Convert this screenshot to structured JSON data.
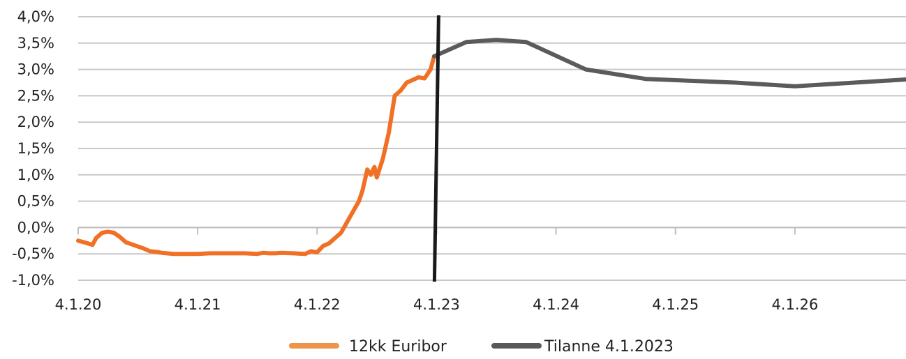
{
  "chart_data": {
    "type": "line",
    "title": "",
    "xlabel": "",
    "ylabel": "",
    "x_ticks": [
      "4.1.20",
      "4.1.21",
      "4.1.22",
      "4.1.23",
      "4.1.24",
      "4.1.25",
      "4.1.26"
    ],
    "y_ticks": [
      "4,0%",
      "3,5%",
      "3,0%",
      "2,5%",
      "2,0%",
      "1,5%",
      "1,0%",
      "0,5%",
      "0,0%",
      "-0,5%",
      "-1,0%"
    ],
    "xlim_years": [
      2020.0,
      2026.93
    ],
    "ylim": [
      -1.0,
      4.0
    ],
    "grid": "horizontal",
    "legend_position": "bottom",
    "vertical_marker": {
      "x": 2023.0,
      "color": "#1a1a1a"
    },
    "series": [
      {
        "name": "12kk Euribor",
        "color": "#f07126",
        "legend_color": "#ee9448",
        "x": [
          2020.0,
          2020.05,
          2020.08,
          2020.12,
          2020.15,
          2020.2,
          2020.25,
          2020.3,
          2020.35,
          2020.4,
          2020.45,
          2020.5,
          2020.55,
          2020.6,
          2020.65,
          2020.7,
          2020.8,
          2020.9,
          2021.0,
          2021.1,
          2021.2,
          2021.3,
          2021.4,
          2021.5,
          2021.55,
          2021.6,
          2021.65,
          2021.7,
          2021.8,
          2021.9,
          2021.95,
          2022.0,
          2022.05,
          2022.1,
          2022.15,
          2022.2,
          2022.25,
          2022.3,
          2022.35,
          2022.38,
          2022.42,
          2022.45,
          2022.48,
          2022.5,
          2022.55,
          2022.6,
          2022.65,
          2022.7,
          2022.75,
          2022.8,
          2022.85,
          2022.9,
          2022.95,
          2022.98
        ],
        "values": [
          -0.25,
          -0.28,
          -0.3,
          -0.33,
          -0.2,
          -0.1,
          -0.08,
          -0.1,
          -0.18,
          -0.28,
          -0.32,
          -0.36,
          -0.4,
          -0.45,
          -0.46,
          -0.48,
          -0.5,
          -0.5,
          -0.5,
          -0.49,
          -0.49,
          -0.49,
          -0.49,
          -0.5,
          -0.48,
          -0.49,
          -0.49,
          -0.48,
          -0.49,
          -0.5,
          -0.45,
          -0.47,
          -0.35,
          -0.3,
          -0.2,
          -0.1,
          0.1,
          0.3,
          0.5,
          0.7,
          1.1,
          1.0,
          1.15,
          0.95,
          1.3,
          1.8,
          2.5,
          2.6,
          2.75,
          2.8,
          2.85,
          2.83,
          3.0,
          3.25
        ]
      },
      {
        "name": "Tilanne 4.1.2023",
        "color": "#5b5b5b",
        "legend_color": "#595959",
        "x": [
          2022.98,
          2023.25,
          2023.5,
          2023.75,
          2024.25,
          2024.75,
          2025.5,
          2026.0,
          2026.93
        ],
        "values": [
          3.25,
          3.52,
          3.56,
          3.52,
          3.0,
          2.82,
          2.75,
          2.68,
          2.81
        ]
      }
    ]
  }
}
